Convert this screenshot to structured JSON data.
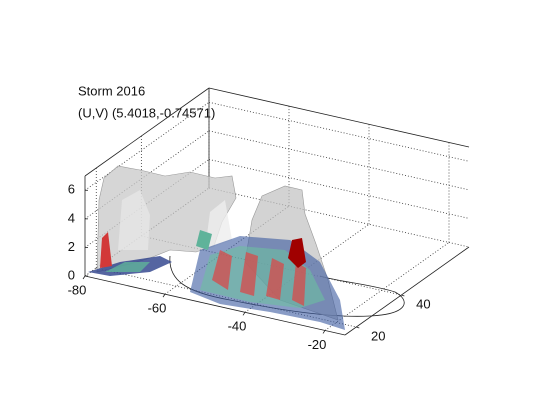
{
  "chart_data": {
    "type": "surface3d",
    "title": "Storm 2016",
    "subtitle": "(U,V) (5.4018,-0.74571)",
    "xlim": [
      -80,
      -15
    ],
    "xticks": [
      -80,
      -60,
      -40,
      -20
    ],
    "ylim": [
      15,
      70
    ],
    "yticks": [
      20,
      40
    ],
    "zlim": [
      0,
      7
    ],
    "zticks": [
      0,
      2,
      4,
      6
    ],
    "grid": true
  }
}
